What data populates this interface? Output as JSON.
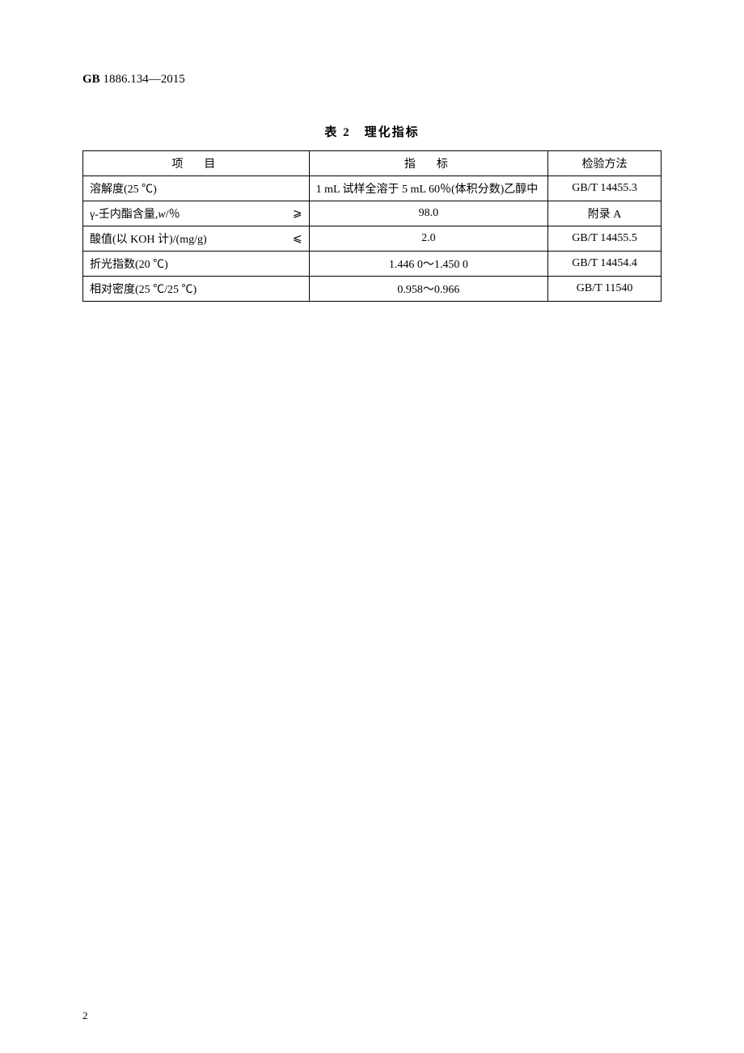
{
  "header": {
    "prefix": "GB",
    "code": "1886.134—2015"
  },
  "table": {
    "title": "表 2　理化指标",
    "columns": [
      "项　目",
      "指　标",
      "检验方法"
    ],
    "rows": [
      {
        "item": "溶解度(25 ℃)",
        "op": "",
        "indicator": "1 mL 试样全溶于 5 mL 60％(体积分数)乙醇中",
        "method": "GB/T 14455.3",
        "indicator_align": "left"
      },
      {
        "item_html": "γ-壬内酯含量,<span class=\"italic\">w</span>/％",
        "op": "⩾",
        "indicator": "98.0",
        "method": "附录 A",
        "indicator_align": "center"
      },
      {
        "item": "酸值(以 KOH 计)/(mg/g)",
        "op": "⩽",
        "indicator": "2.0",
        "method": "GB/T 14455.5",
        "indicator_align": "center"
      },
      {
        "item": "折光指数(20 ℃)",
        "op": "",
        "indicator": "1.446 0～1.450 0",
        "method": "GB/T 14454.4",
        "indicator_align": "center"
      },
      {
        "item": "相对密度(25 ℃/25 ℃)",
        "op": "",
        "indicator": "0.958～0.966",
        "method": "GB/T 11540",
        "indicator_align": "center"
      }
    ]
  },
  "page_number": "2"
}
